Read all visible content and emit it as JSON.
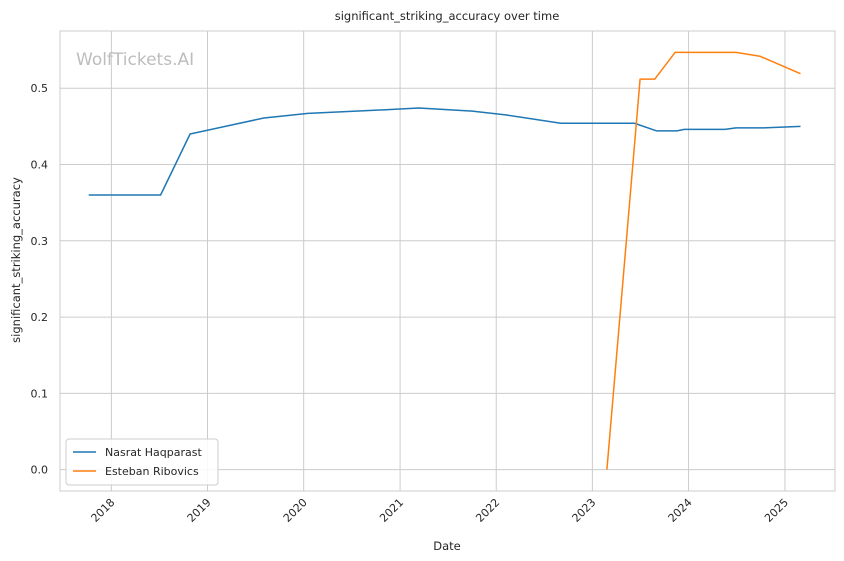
{
  "watermark": "WolfTickets.AI",
  "chart_data": {
    "type": "line",
    "title": "significant_striking_accuracy over time",
    "xlabel": "Date",
    "ylabel": "significant_striking_accuracy",
    "xlim": [
      "2017-06-20",
      "2025-07-10"
    ],
    "ylim": [
      -0.028,
      0.575
    ],
    "x_ticks": [
      "2018",
      "2019",
      "2020",
      "2021",
      "2022",
      "2023",
      "2024",
      "2025"
    ],
    "x_tick_dates": [
      "2018-01-01",
      "2019-01-01",
      "2020-01-01",
      "2021-01-01",
      "2022-01-01",
      "2023-01-01",
      "2024-01-01",
      "2025-01-01"
    ],
    "y_ticks": [
      "0.0",
      "0.1",
      "0.2",
      "0.3",
      "0.4",
      "0.5"
    ],
    "y_tick_values": [
      0.0,
      0.1,
      0.2,
      0.3,
      0.4,
      0.5
    ],
    "grid": true,
    "legend_position": "lower-left",
    "series": [
      {
        "name": "Nasrat Haqparast",
        "color": "#1f77b4",
        "points": [
          {
            "x": "2017-10-07",
            "y": 0.36
          },
          {
            "x": "2018-07-07",
            "y": 0.36
          },
          {
            "x": "2018-10-27",
            "y": 0.44
          },
          {
            "x": "2019-08-03",
            "y": 0.461
          },
          {
            "x": "2020-01-18",
            "y": 0.467
          },
          {
            "x": "2020-09-26",
            "y": 0.471
          },
          {
            "x": "2021-03-13",
            "y": 0.474
          },
          {
            "x": "2021-10-02",
            "y": 0.47
          },
          {
            "x": "2022-02-05",
            "y": 0.465
          },
          {
            "x": "2022-09-03",
            "y": 0.454
          },
          {
            "x": "2023-06-10",
            "y": 0.454
          },
          {
            "x": "2023-09-02",
            "y": 0.444
          },
          {
            "x": "2023-11-18",
            "y": 0.444
          },
          {
            "x": "2023-12-16",
            "y": 0.446
          },
          {
            "x": "2024-05-18",
            "y": 0.446
          },
          {
            "x": "2024-06-29",
            "y": 0.448
          },
          {
            "x": "2024-10-12",
            "y": 0.448
          },
          {
            "x": "2025-03-01",
            "y": 0.45
          }
        ]
      },
      {
        "name": "Esteban Ribovics",
        "color": "#ff7f0e",
        "points": [
          {
            "x": "2023-02-25",
            "y": 0.0
          },
          {
            "x": "2023-07-01",
            "y": 0.512
          },
          {
            "x": "2023-08-26",
            "y": 0.512
          },
          {
            "x": "2023-11-11",
            "y": 0.547
          },
          {
            "x": "2024-06-29",
            "y": 0.547
          },
          {
            "x": "2024-09-28",
            "y": 0.542
          },
          {
            "x": "2025-03-01",
            "y": 0.519
          }
        ]
      }
    ]
  }
}
